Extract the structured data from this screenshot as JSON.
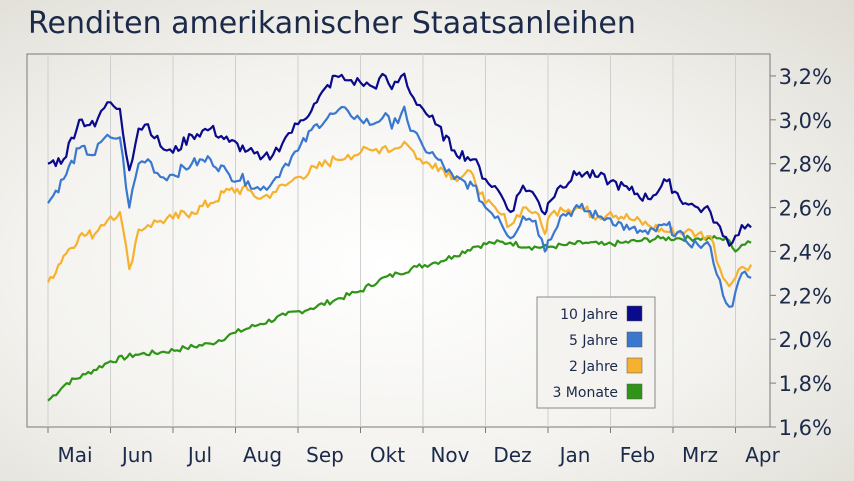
{
  "chart_data": {
    "type": "line",
    "title": "Renditen amerikanischer Staatsanleihen",
    "xlabel": "",
    "ylabel": "",
    "x_ticks": [
      "Mai",
      "Jun",
      "Jul",
      "Aug",
      "Sep",
      "Okt",
      "Nov",
      "Dez",
      "Jan",
      "Feb",
      "Mrz",
      "Apr"
    ],
    "y_ticks": [
      "1,6%",
      "1,8%",
      "2,0%",
      "2,2%",
      "2,4%",
      "2,6%",
      "2,8%",
      "3,0%",
      "3,2%"
    ],
    "ylim": [
      1.6,
      3.3
    ],
    "xlim": [
      0,
      11.25
    ],
    "grid": true,
    "legend_position": "bottom-right",
    "series": [
      {
        "name": "10 Jahre",
        "color": "#0a0a8c",
        "x": [
          0,
          0.25,
          0.5,
          0.75,
          0.85,
          1,
          1.15,
          1.3,
          1.45,
          1.6,
          1.8,
          2,
          2.3,
          2.6,
          2.9,
          3.2,
          3.4,
          3.6,
          3.8,
          4,
          4.3,
          4.6,
          4.8,
          5,
          5.2,
          5.4,
          5.5,
          5.7,
          5.8,
          6,
          6.2,
          6.5,
          6.8,
          7,
          7.2,
          7.4,
          7.6,
          7.8,
          7.95,
          8,
          8.2,
          8.5,
          8.8,
          9,
          9.3,
          9.6,
          9.9,
          10.2,
          10.4,
          10.6,
          10.8,
          10.95,
          11.1,
          11.25
        ],
        "values": [
          2.8,
          2.82,
          3.0,
          2.97,
          3.04,
          3.08,
          3.05,
          2.77,
          2.96,
          2.98,
          2.88,
          2.85,
          2.93,
          2.96,
          2.9,
          2.86,
          2.82,
          2.84,
          2.92,
          2.98,
          3.08,
          3.2,
          3.18,
          3.17,
          3.15,
          3.2,
          3.14,
          3.21,
          3.12,
          3.05,
          2.98,
          2.86,
          2.82,
          2.73,
          2.68,
          2.58,
          2.7,
          2.65,
          2.57,
          2.62,
          2.7,
          2.76,
          2.74,
          2.72,
          2.68,
          2.64,
          2.72,
          2.62,
          2.6,
          2.58,
          2.47,
          2.44,
          2.52,
          2.51
        ]
      },
      {
        "name": "5 Jahre",
        "color": "#3a78d0",
        "x": [
          0,
          0.25,
          0.5,
          0.75,
          0.85,
          1,
          1.15,
          1.3,
          1.45,
          1.6,
          1.8,
          2,
          2.3,
          2.6,
          2.9,
          3.2,
          3.4,
          3.6,
          3.8,
          4,
          4.3,
          4.6,
          4.8,
          5,
          5.2,
          5.4,
          5.5,
          5.7,
          5.8,
          6,
          6.2,
          6.5,
          6.8,
          7,
          7.2,
          7.4,
          7.6,
          7.8,
          7.95,
          8,
          8.2,
          8.5,
          8.8,
          9,
          9.3,
          9.6,
          9.9,
          10.2,
          10.4,
          10.6,
          10.8,
          10.95,
          11.1,
          11.25
        ],
        "values": [
          2.62,
          2.73,
          2.87,
          2.84,
          2.9,
          2.92,
          2.92,
          2.6,
          2.8,
          2.82,
          2.74,
          2.75,
          2.8,
          2.82,
          2.75,
          2.72,
          2.68,
          2.72,
          2.8,
          2.86,
          2.98,
          3.03,
          3.04,
          3.0,
          2.98,
          3.03,
          2.96,
          3.06,
          2.95,
          2.88,
          2.83,
          2.73,
          2.7,
          2.6,
          2.56,
          2.46,
          2.56,
          2.54,
          2.4,
          2.45,
          2.56,
          2.6,
          2.56,
          2.55,
          2.5,
          2.48,
          2.52,
          2.45,
          2.43,
          2.42,
          2.2,
          2.15,
          2.3,
          2.28
        ]
      },
      {
        "name": "2 Jahre",
        "color": "#f6b12e",
        "x": [
          0,
          0.25,
          0.5,
          0.75,
          0.85,
          1,
          1.15,
          1.3,
          1.45,
          1.6,
          1.8,
          2,
          2.3,
          2.6,
          2.9,
          3.2,
          3.4,
          3.6,
          3.8,
          4,
          4.3,
          4.6,
          4.8,
          5,
          5.2,
          5.4,
          5.5,
          5.7,
          5.8,
          6,
          6.2,
          6.5,
          6.8,
          7,
          7.2,
          7.4,
          7.6,
          7.8,
          7.95,
          8,
          8.2,
          8.5,
          8.8,
          9,
          9.3,
          9.6,
          9.9,
          10.2,
          10.4,
          10.6,
          10.8,
          10.95,
          11.1,
          11.25
        ],
        "values": [
          2.26,
          2.38,
          2.47,
          2.48,
          2.52,
          2.56,
          2.58,
          2.32,
          2.5,
          2.52,
          2.54,
          2.55,
          2.58,
          2.62,
          2.68,
          2.68,
          2.64,
          2.67,
          2.7,
          2.74,
          2.78,
          2.82,
          2.84,
          2.85,
          2.86,
          2.88,
          2.86,
          2.9,
          2.87,
          2.8,
          2.8,
          2.74,
          2.75,
          2.62,
          2.58,
          2.52,
          2.6,
          2.58,
          2.48,
          2.55,
          2.6,
          2.6,
          2.56,
          2.58,
          2.55,
          2.52,
          2.49,
          2.49,
          2.48,
          2.47,
          2.28,
          2.26,
          2.33,
          2.34
        ]
      },
      {
        "name": "3 Monate",
        "color": "#2f9418",
        "x": [
          0,
          0.3,
          0.6,
          1,
          1.4,
          1.8,
          2.2,
          2.6,
          3,
          3.4,
          3.8,
          4.2,
          4.6,
          5,
          5.3,
          5.6,
          5.9,
          6.2,
          6.5,
          6.8,
          7.1,
          7.4,
          7.7,
          8,
          8.3,
          8.6,
          8.9,
          9.2,
          9.5,
          9.8,
          10.1,
          10.4,
          10.7,
          10.9,
          11,
          11.1,
          11.25
        ],
        "values": [
          1.72,
          1.8,
          1.84,
          1.9,
          1.93,
          1.94,
          1.96,
          1.98,
          2.03,
          2.07,
          2.11,
          2.14,
          2.18,
          2.22,
          2.27,
          2.3,
          2.33,
          2.35,
          2.38,
          2.42,
          2.44,
          2.44,
          2.42,
          2.42,
          2.43,
          2.44,
          2.43,
          2.44,
          2.45,
          2.46,
          2.46,
          2.46,
          2.46,
          2.45,
          2.4,
          2.43,
          2.44
        ]
      }
    ]
  }
}
